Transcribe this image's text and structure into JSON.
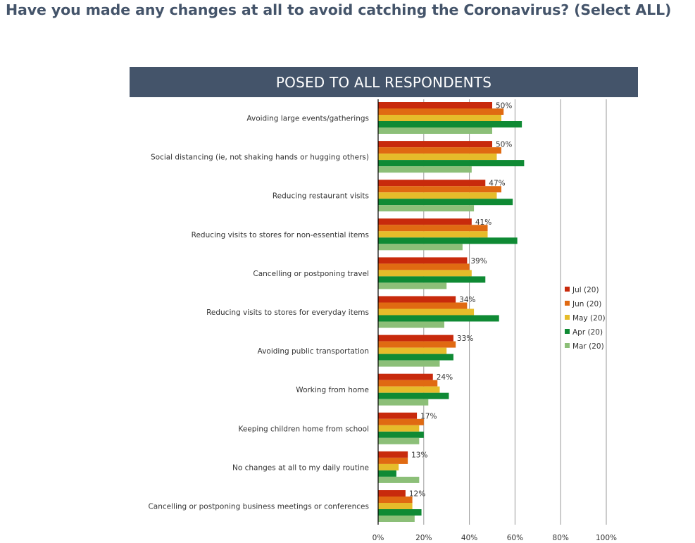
{
  "page": {
    "title": "Have you made any changes at all to avoid catching the Coronavirus? (Select ALL)",
    "banner": "POSED TO ALL RESPONDENTS"
  },
  "colors": {
    "title": "#44546a",
    "banner_bg": "#44546a",
    "banner_text": "#ffffff",
    "gridline": "#9a9a9a",
    "axis": "#000000",
    "text": "#333333"
  },
  "chart_data": {
    "type": "bar",
    "orientation": "horizontal",
    "title": "",
    "xlabel": "",
    "ylabel": "",
    "xlim": [
      0,
      100
    ],
    "x_ticks": [
      0,
      20,
      40,
      60,
      80,
      100
    ],
    "x_tick_labels": [
      "0%",
      "20%",
      "40%",
      "60%",
      "80%",
      "100%"
    ],
    "grid": "vertical",
    "legend_position": "right",
    "categories": [
      "Avoiding large events/gatherings",
      "Social distancing (ie, not shaking hands or hugging others)",
      "Reducing restaurant visits",
      "Reducing visits to stores for non-essential items",
      "Cancelling or postponing travel",
      "Reducing visits to stores for everyday items",
      "Avoiding public transportation",
      "Working from home",
      "Keeping children home from school",
      "No changes at all to my daily routine",
      "Cancelling or postponing business meetings or conferences"
    ],
    "series": [
      {
        "name": "Jul (20)",
        "color": "#c82a0c",
        "values": [
          50,
          50,
          47,
          41,
          39,
          34,
          33,
          24,
          17,
          13,
          12
        ],
        "data_labels": [
          "50%",
          "50%",
          "47%",
          "41%",
          "39%",
          "34%",
          "33%",
          "24%",
          "17%",
          "13%",
          "12%"
        ]
      },
      {
        "name": "Jun (20)",
        "color": "#e06a12",
        "values": [
          55,
          54,
          54,
          48,
          40,
          39,
          34,
          26,
          20,
          13,
          15
        ]
      },
      {
        "name": "May (20)",
        "color": "#e6bc2a",
        "values": [
          54,
          52,
          52,
          48,
          41,
          42,
          30,
          27,
          18,
          9,
          15
        ]
      },
      {
        "name": "Apr (20)",
        "color": "#0f8a34",
        "values": [
          63,
          64,
          59,
          61,
          47,
          53,
          33,
          31,
          20,
          8,
          19
        ]
      },
      {
        "name": "Mar (20)",
        "color": "#8cbf78",
        "values": [
          50,
          41,
          42,
          37,
          30,
          29,
          27,
          22,
          18,
          18,
          16
        ]
      }
    ]
  }
}
